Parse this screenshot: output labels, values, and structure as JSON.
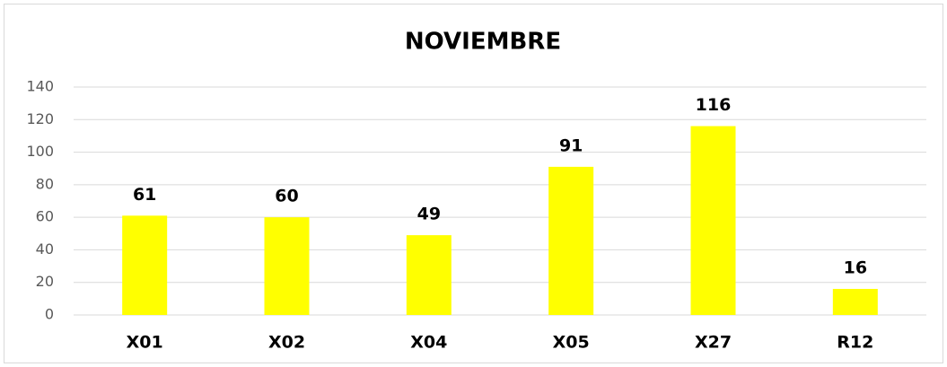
{
  "chart_data": {
    "type": "bar",
    "title": "NOVIEMBRE",
    "categories": [
      "X01",
      "X02",
      "X04",
      "X05",
      "X27",
      "R12"
    ],
    "values": [
      61,
      60,
      49,
      91,
      116,
      16
    ],
    "color": "#ffff00",
    "ylim": [
      0,
      140
    ],
    "yticks": [
      0,
      20,
      40,
      60,
      80,
      100,
      120,
      140
    ],
    "grid": true
  }
}
